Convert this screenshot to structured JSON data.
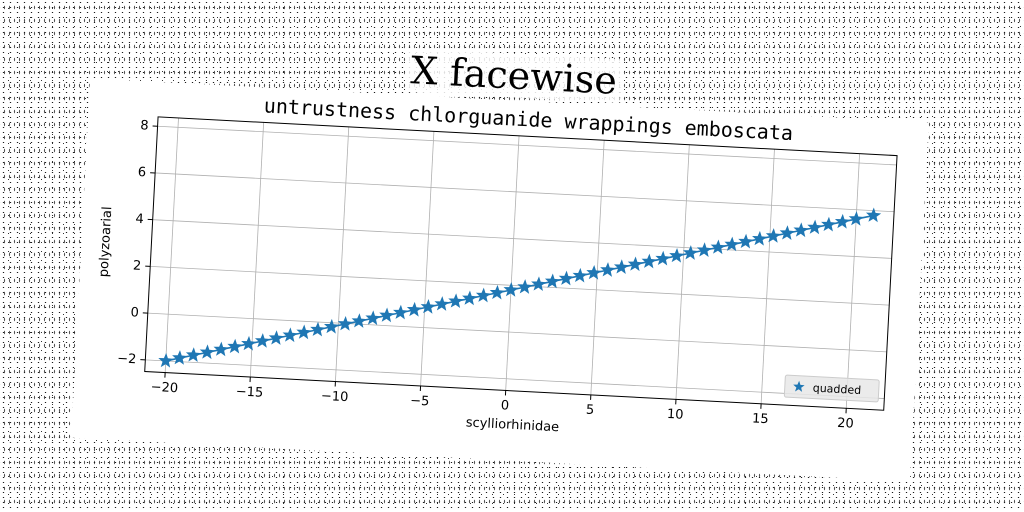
{
  "figure": {
    "title": "X facewise"
  },
  "chart_data": {
    "type": "line",
    "title": "untrustness chlorguanide wrappings emboscata",
    "xlabel": "scylliorhinidae",
    "ylabel": "polyzoarial",
    "xlim": [
      -21.2,
      22.2
    ],
    "ylim": [
      -2.5,
      8.4
    ],
    "xticks": [
      -20,
      -15,
      -10,
      -5,
      0,
      5,
      10,
      15,
      20
    ],
    "yticks": [
      -2,
      0,
      2,
      4,
      6,
      8
    ],
    "grid": true,
    "legend_position": "lower-right",
    "series": [
      {
        "name": "quadded",
        "color": "#1f77b4",
        "marker": "star",
        "slope": 0.19,
        "intercept": 1.8,
        "x": [
          -20.0,
          -19.2,
          -18.4,
          -17.6,
          -16.8,
          -16.0,
          -15.2,
          -14.4,
          -13.6,
          -12.8,
          -12.0,
          -11.2,
          -10.4,
          -9.6,
          -8.8,
          -8.0,
          -7.2,
          -6.4,
          -5.6,
          -4.8,
          -4.0,
          -3.2,
          -2.4,
          -1.6,
          -0.8,
          0.0,
          0.8,
          1.6,
          2.4,
          3.2,
          4.0,
          4.8,
          5.6,
          6.4,
          7.2,
          8.0,
          8.8,
          9.6,
          10.4,
          11.2,
          12.0,
          12.8,
          13.6,
          14.4,
          15.2,
          16.0,
          16.8,
          17.6,
          18.4,
          19.2,
          20.0,
          21.0
        ]
      }
    ]
  }
}
